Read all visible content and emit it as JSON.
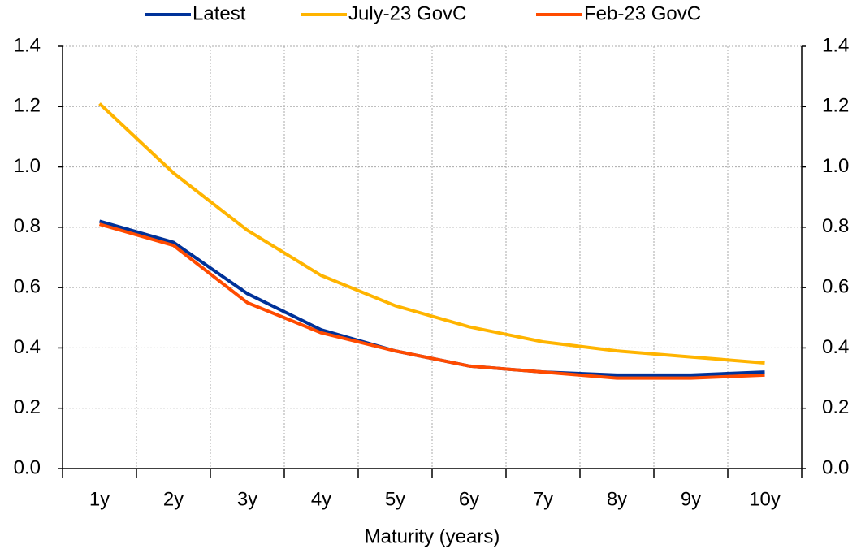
{
  "chart_data": {
    "type": "line",
    "x_label": "Maturity (years)",
    "categories": [
      "1y",
      "2y",
      "3y",
      "4y",
      "5y",
      "6y",
      "7y",
      "8y",
      "9y",
      "10y"
    ],
    "series": [
      {
        "name": "Latest",
        "color": "#003299",
        "values": [
          0.82,
          0.75,
          0.58,
          0.46,
          0.39,
          0.34,
          0.32,
          0.31,
          0.31,
          0.32
        ]
      },
      {
        "name": "July-23 GovC",
        "color": "#FFB400",
        "values": [
          1.21,
          0.98,
          0.79,
          0.64,
          0.54,
          0.47,
          0.42,
          0.39,
          0.37,
          0.35
        ]
      },
      {
        "name": "Feb-23 GovC",
        "color": "#FF4B00",
        "values": [
          0.81,
          0.74,
          0.55,
          0.45,
          0.39,
          0.34,
          0.32,
          0.3,
          0.3,
          0.31
        ]
      }
    ],
    "ylim": [
      0,
      1.4
    ],
    "yticks": [
      {
        "value": 0,
        "label": "0.0"
      },
      0.2,
      0.4,
      0.6,
      0.8,
      {
        "value": 1,
        "label": "1.0"
      },
      1.2,
      1.4
    ],
    "y2lim": [
      0,
      1.4
    ],
    "y2ticks": [
      {
        "value": 0,
        "label": "0.0"
      },
      0.2,
      0.4,
      0.6,
      0.8,
      {
        "value": 1,
        "label": "1.0"
      },
      1.2,
      1.4
    ],
    "grid": true,
    "legend": "top"
  }
}
